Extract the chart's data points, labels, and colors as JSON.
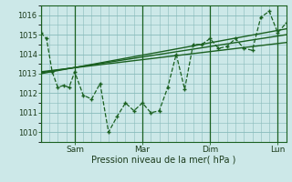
{
  "title": "",
  "xlabel": "Pression niveau de la mer( hPa )",
  "bg_color": "#cce8e8",
  "grid_color": "#88bbbb",
  "line_color": "#1a6020",
  "ylim": [
    1009.5,
    1016.5
  ],
  "xlim": [
    0,
    87
  ],
  "xtick_positions": [
    12,
    36,
    60,
    84
  ],
  "xtick_labels": [
    "Sam",
    "Mar",
    "Dim",
    "Lun"
  ],
  "ytick_positions": [
    1010,
    1011,
    1012,
    1013,
    1014,
    1015,
    1016
  ],
  "ytick_labels": [
    "1010",
    "1011",
    "1012",
    "1013",
    "1014",
    "1015",
    "1016"
  ],
  "vlines": [
    0,
    12,
    36,
    60,
    84
  ],
  "main_x": [
    0,
    2,
    4,
    6,
    8,
    10,
    12,
    15,
    18,
    21,
    24,
    27,
    30,
    33,
    36,
    39,
    42,
    45,
    48,
    51,
    54,
    57,
    60,
    63,
    66,
    69,
    72,
    75,
    78,
    81,
    84,
    87
  ],
  "main_y": [
    1015.1,
    1014.8,
    1013.1,
    1012.3,
    1012.4,
    1012.3,
    1013.1,
    1011.9,
    1011.7,
    1012.5,
    1010.0,
    1010.8,
    1011.5,
    1011.1,
    1011.5,
    1011.0,
    1011.1,
    1012.3,
    1014.0,
    1012.2,
    1014.5,
    1014.5,
    1014.8,
    1014.3,
    1014.4,
    1014.8,
    1014.3,
    1014.2,
    1015.9,
    1016.2,
    1015.1,
    1015.6
  ],
  "trend1_x": [
    0,
    87
  ],
  "trend1_y": [
    1013.1,
    1014.6
  ],
  "trend2_x": [
    0,
    87
  ],
  "trend2_y": [
    1013.05,
    1015.0
  ],
  "trend3_x": [
    0,
    87
  ],
  "trend3_y": [
    1013.0,
    1015.3
  ]
}
